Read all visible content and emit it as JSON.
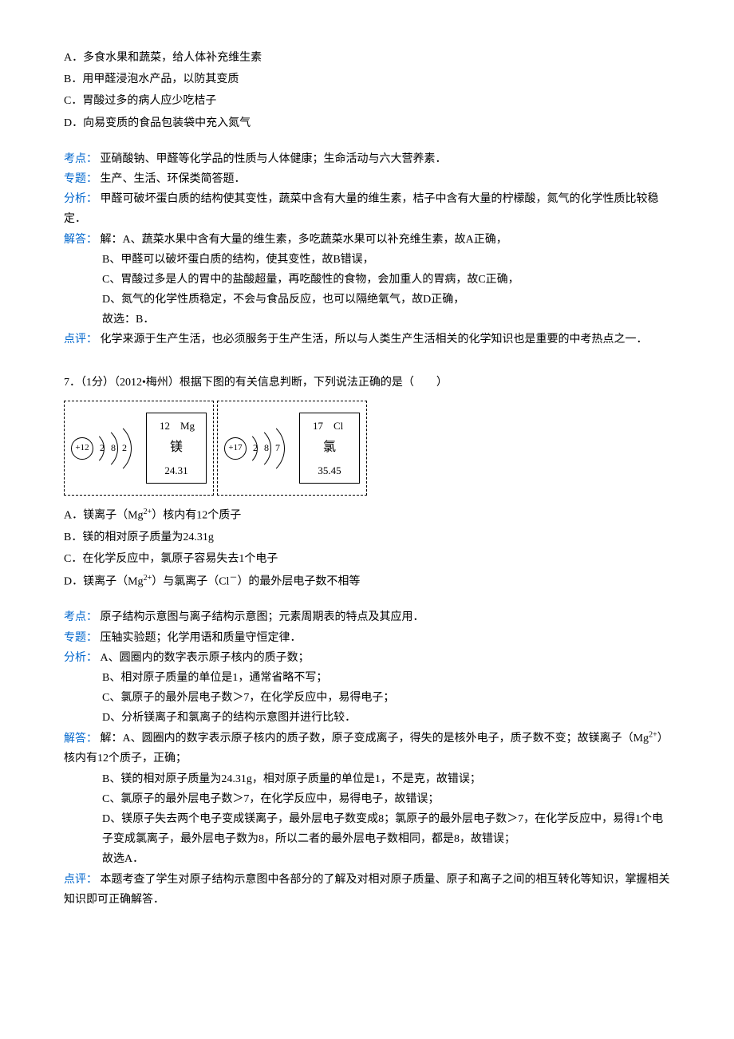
{
  "q6": {
    "options": {
      "a": "A．多食水果和蔬菜，给人体补充维生素",
      "b": "B．用甲醛浸泡水产品，以防其变质",
      "c": "C．胃酸过多的病人应少吃桔子",
      "d": "D．向易变质的食品包装袋中充入氮气"
    },
    "kaodian_label": "考点：",
    "kaodian_text": "亚硝酸钠、甲醛等化学品的性质与人体健康；生命活动与六大营养素．",
    "zhuanti_label": "专题：",
    "zhuanti_text": "生产、生活、环保类简答题．",
    "fenxi_label": "分析：",
    "fenxi_text": "甲醛可破坏蛋白质的结构使其变性，蔬菜中含有大量的维生素，桔子中含有大量的柠檬酸，氮气的化学性质比较稳定．",
    "jieda_label": "解答：",
    "jieda_lines": [
      "解：A、蔬菜水果中含有大量的维生素，多吃蔬菜水果可以补充维生素，故A正确，",
      "B、甲醛可以破坏蛋白质的结构，使其变性，故B错误，",
      "C、胃酸过多是人的胃中的盐酸超量，再吃酸性的食物，会加重人的胃病，故C正确，",
      "D、氮气的化学性质稳定，不会与食品反应，也可以隔绝氧气，故D正确，",
      "故选：B．"
    ],
    "dianping_label": "点评：",
    "dianping_text": "化学来源于生产生活，也必须服务于生产生活，所以与人类生产生活相关的化学知识也是重要的中考热点之一．"
  },
  "q7": {
    "header": "7．（1分）（2012•梅州）根据下图的有关信息判断，下列说法正确的是（　　）",
    "mg": {
      "nucleus": "+12",
      "shells": [
        "2",
        "8",
        "2"
      ],
      "number_symbol": "12　Mg",
      "name": "镁",
      "mass": "24.31"
    },
    "cl": {
      "nucleus": "+17",
      "shells": [
        "2",
        "8",
        "7"
      ],
      "number_symbol": "17　Cl",
      "name": "氯",
      "mass": "35.45"
    },
    "options": {
      "a_pre": "A．镁离子（Mg",
      "a_sup": "2+",
      "a_post": "）核内有12个质子",
      "b": "B．镁的相对原子质量为24.31g",
      "c": "C．在化学反应中，氯原子容易失去1个电子",
      "d_pre": "D．镁离子（Mg",
      "d_sup": "2+",
      "d_mid": "）与氯离子（Cl",
      "d_sup2": "－",
      "d_post": "）的最外层电子数不相等"
    },
    "kaodian_label": "考点：",
    "kaodian_text": "原子结构示意图与离子结构示意图；元素周期表的特点及其应用．",
    "zhuanti_label": "专题：",
    "zhuanti_text": "压轴实验题；化学用语和质量守恒定律．",
    "fenxi_label": "分析：",
    "fenxi_lines": [
      "A、圆圈内的数字表示原子核内的质子数；",
      "B、相对原子质量的单位是1，通常省略不写；",
      "C、氯原子的最外层电子数＞7，在化学反应中，易得电子；",
      "D、分析镁离子和氯离子的结构示意图并进行比较．"
    ],
    "jieda_label": "解答：",
    "jieda_first_pre": "解：A、圆圈内的数字表示原子核内的质子数，原子变成离子，得失的是核外电子，质子数不变；故镁离子（Mg",
    "jieda_first_sup": "2+",
    "jieda_first_post": "）核内有12个质子，正确；",
    "jieda_lines": [
      "B、镁的相对原子质量为24.31g，相对原子质量的单位是1，不是克，故错误；",
      "C、氯原子的最外层电子数＞7，在化学反应中，易得电子，故错误；",
      "D、镁原子失去两个电子变成镁离子，最外层电子数变成8；氯原子的最外层电子数＞7，在化学反应中，易得1个电子变成氯离子，最外层电子数为8，所以二者的最外层电子数相同，都是8，故错误；",
      "故选A．"
    ],
    "dianping_label": "点评：",
    "dianping_text": "本题考查了学生对原子结构示意图中各部分的了解及对相对原子质量、原子和离子之间的相互转化等知识，掌握相关知识即可正确解答．"
  }
}
